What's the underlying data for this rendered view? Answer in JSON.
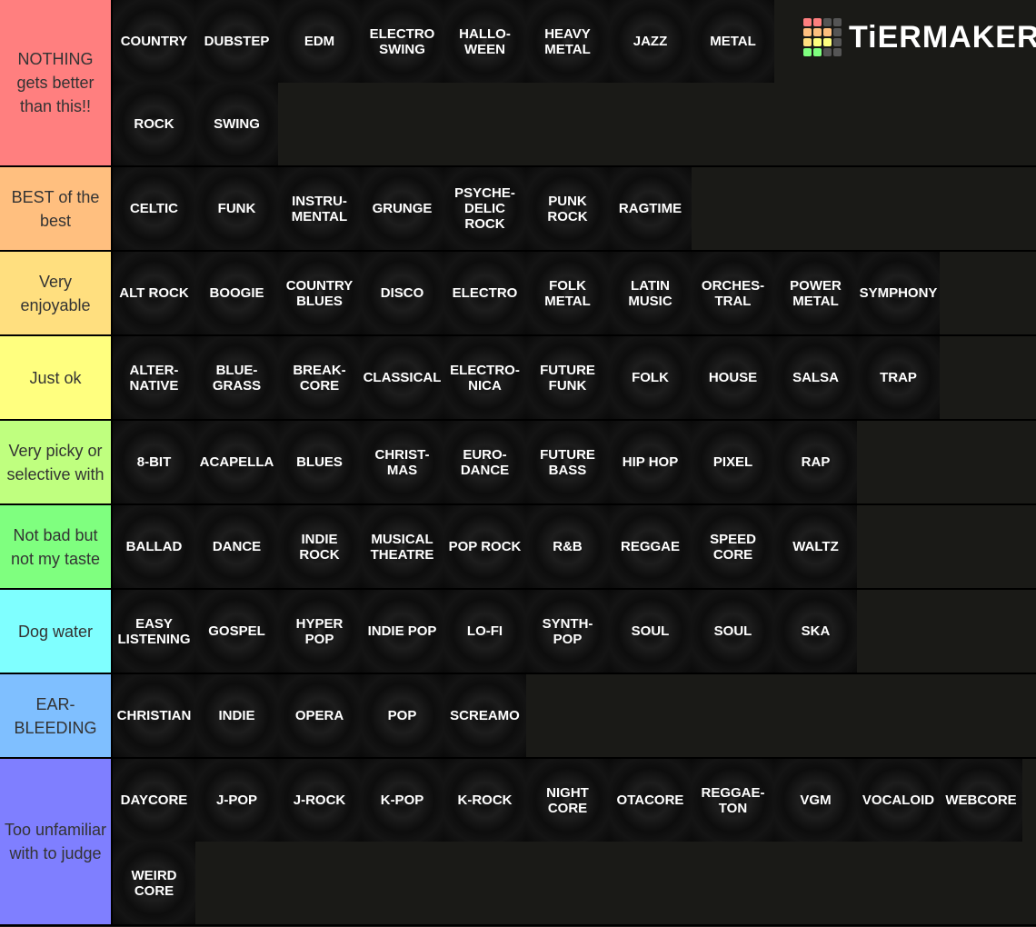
{
  "logo": "TiERMAKER",
  "tiers": [
    {
      "label": "NOTHING gets better than this!!",
      "color": "#ff7f7f",
      "items": [
        "COUNTRY",
        "DUBSTEP",
        "EDM",
        "ELECTRO\nSWING",
        "HALLO-\nWEEN",
        "HEAVY\nMETAL",
        "JAZZ",
        "METAL",
        "ROCK",
        "SWING"
      ]
    },
    {
      "label": "BEST of the best",
      "color": "#ffbf7f",
      "items": [
        "CELTIC",
        "FUNK",
        "INSTRU-\nMENTAL",
        "GRUNGE",
        "PSYCHE-\nDELIC\nROCK",
        "PUNK\nROCK",
        "RAGTIME"
      ]
    },
    {
      "label": "Very enjoyable",
      "color": "#ffdf7f",
      "items": [
        "ALT ROCK",
        "BOOGIE",
        "COUNTRY\nBLUES",
        "DISCO",
        "ELECTRO",
        "FOLK\nMETAL",
        "LATIN\nMUSIC",
        "ORCHES-\nTRAL",
        "POWER\nMETAL",
        "SYMPHONY"
      ]
    },
    {
      "label": "Just ok",
      "color": "#ffff7f",
      "items": [
        "ALTER-\nNATIVE",
        "BLUE-\nGRASS",
        "BREAK-\nCORE",
        "CLASSICAL",
        "ELECTRO-\nNICA",
        "FUTURE\nFUNK",
        "FOLK",
        "HOUSE",
        "SALSA",
        "TRAP"
      ]
    },
    {
      "label": "Very picky or selective with",
      "color": "#bfff7f",
      "items": [
        "8-BIT",
        "ACAPELLA",
        "BLUES",
        "CHRIST-\nMAS",
        "EURO-\nDANCE",
        "FUTURE\nBASS",
        "HIP HOP",
        "PIXEL",
        "RAP"
      ]
    },
    {
      "label": "Not bad but not my taste",
      "color": "#7fff7f",
      "items": [
        "BALLAD",
        "DANCE",
        "INDIE\nROCK",
        "MUSICAL\nTHEATRE",
        "POP ROCK",
        "R&B",
        "REGGAE",
        "SPEED\nCORE",
        "WALTZ"
      ]
    },
    {
      "label": "Dog water",
      "color": "#7fffff",
      "items": [
        "EASY\nLISTENING",
        "GOSPEL",
        "HYPER\nPOP",
        "INDIE POP",
        "LO-FI",
        "SYNTH-\nPOP",
        "SOUL",
        "SOUL",
        "SKA"
      ]
    },
    {
      "label": "EAR-BLEEDING",
      "color": "#7fbfff",
      "items": [
        "CHRISTIAN",
        "INDIE",
        "OPERA",
        "POP",
        "SCREAMO"
      ]
    },
    {
      "label": "Too unfamiliar with to judge",
      "color": "#7f7fff",
      "items": [
        "DAYCORE",
        "J-POP",
        "J-ROCK",
        "K-POP",
        "K-ROCK",
        "NIGHT\nCORE",
        "OTACORE",
        "REGGAE-\nTON",
        "VGM",
        "VOCALOID",
        "WEBCORE",
        "WEIRD\nCORE"
      ]
    }
  ]
}
